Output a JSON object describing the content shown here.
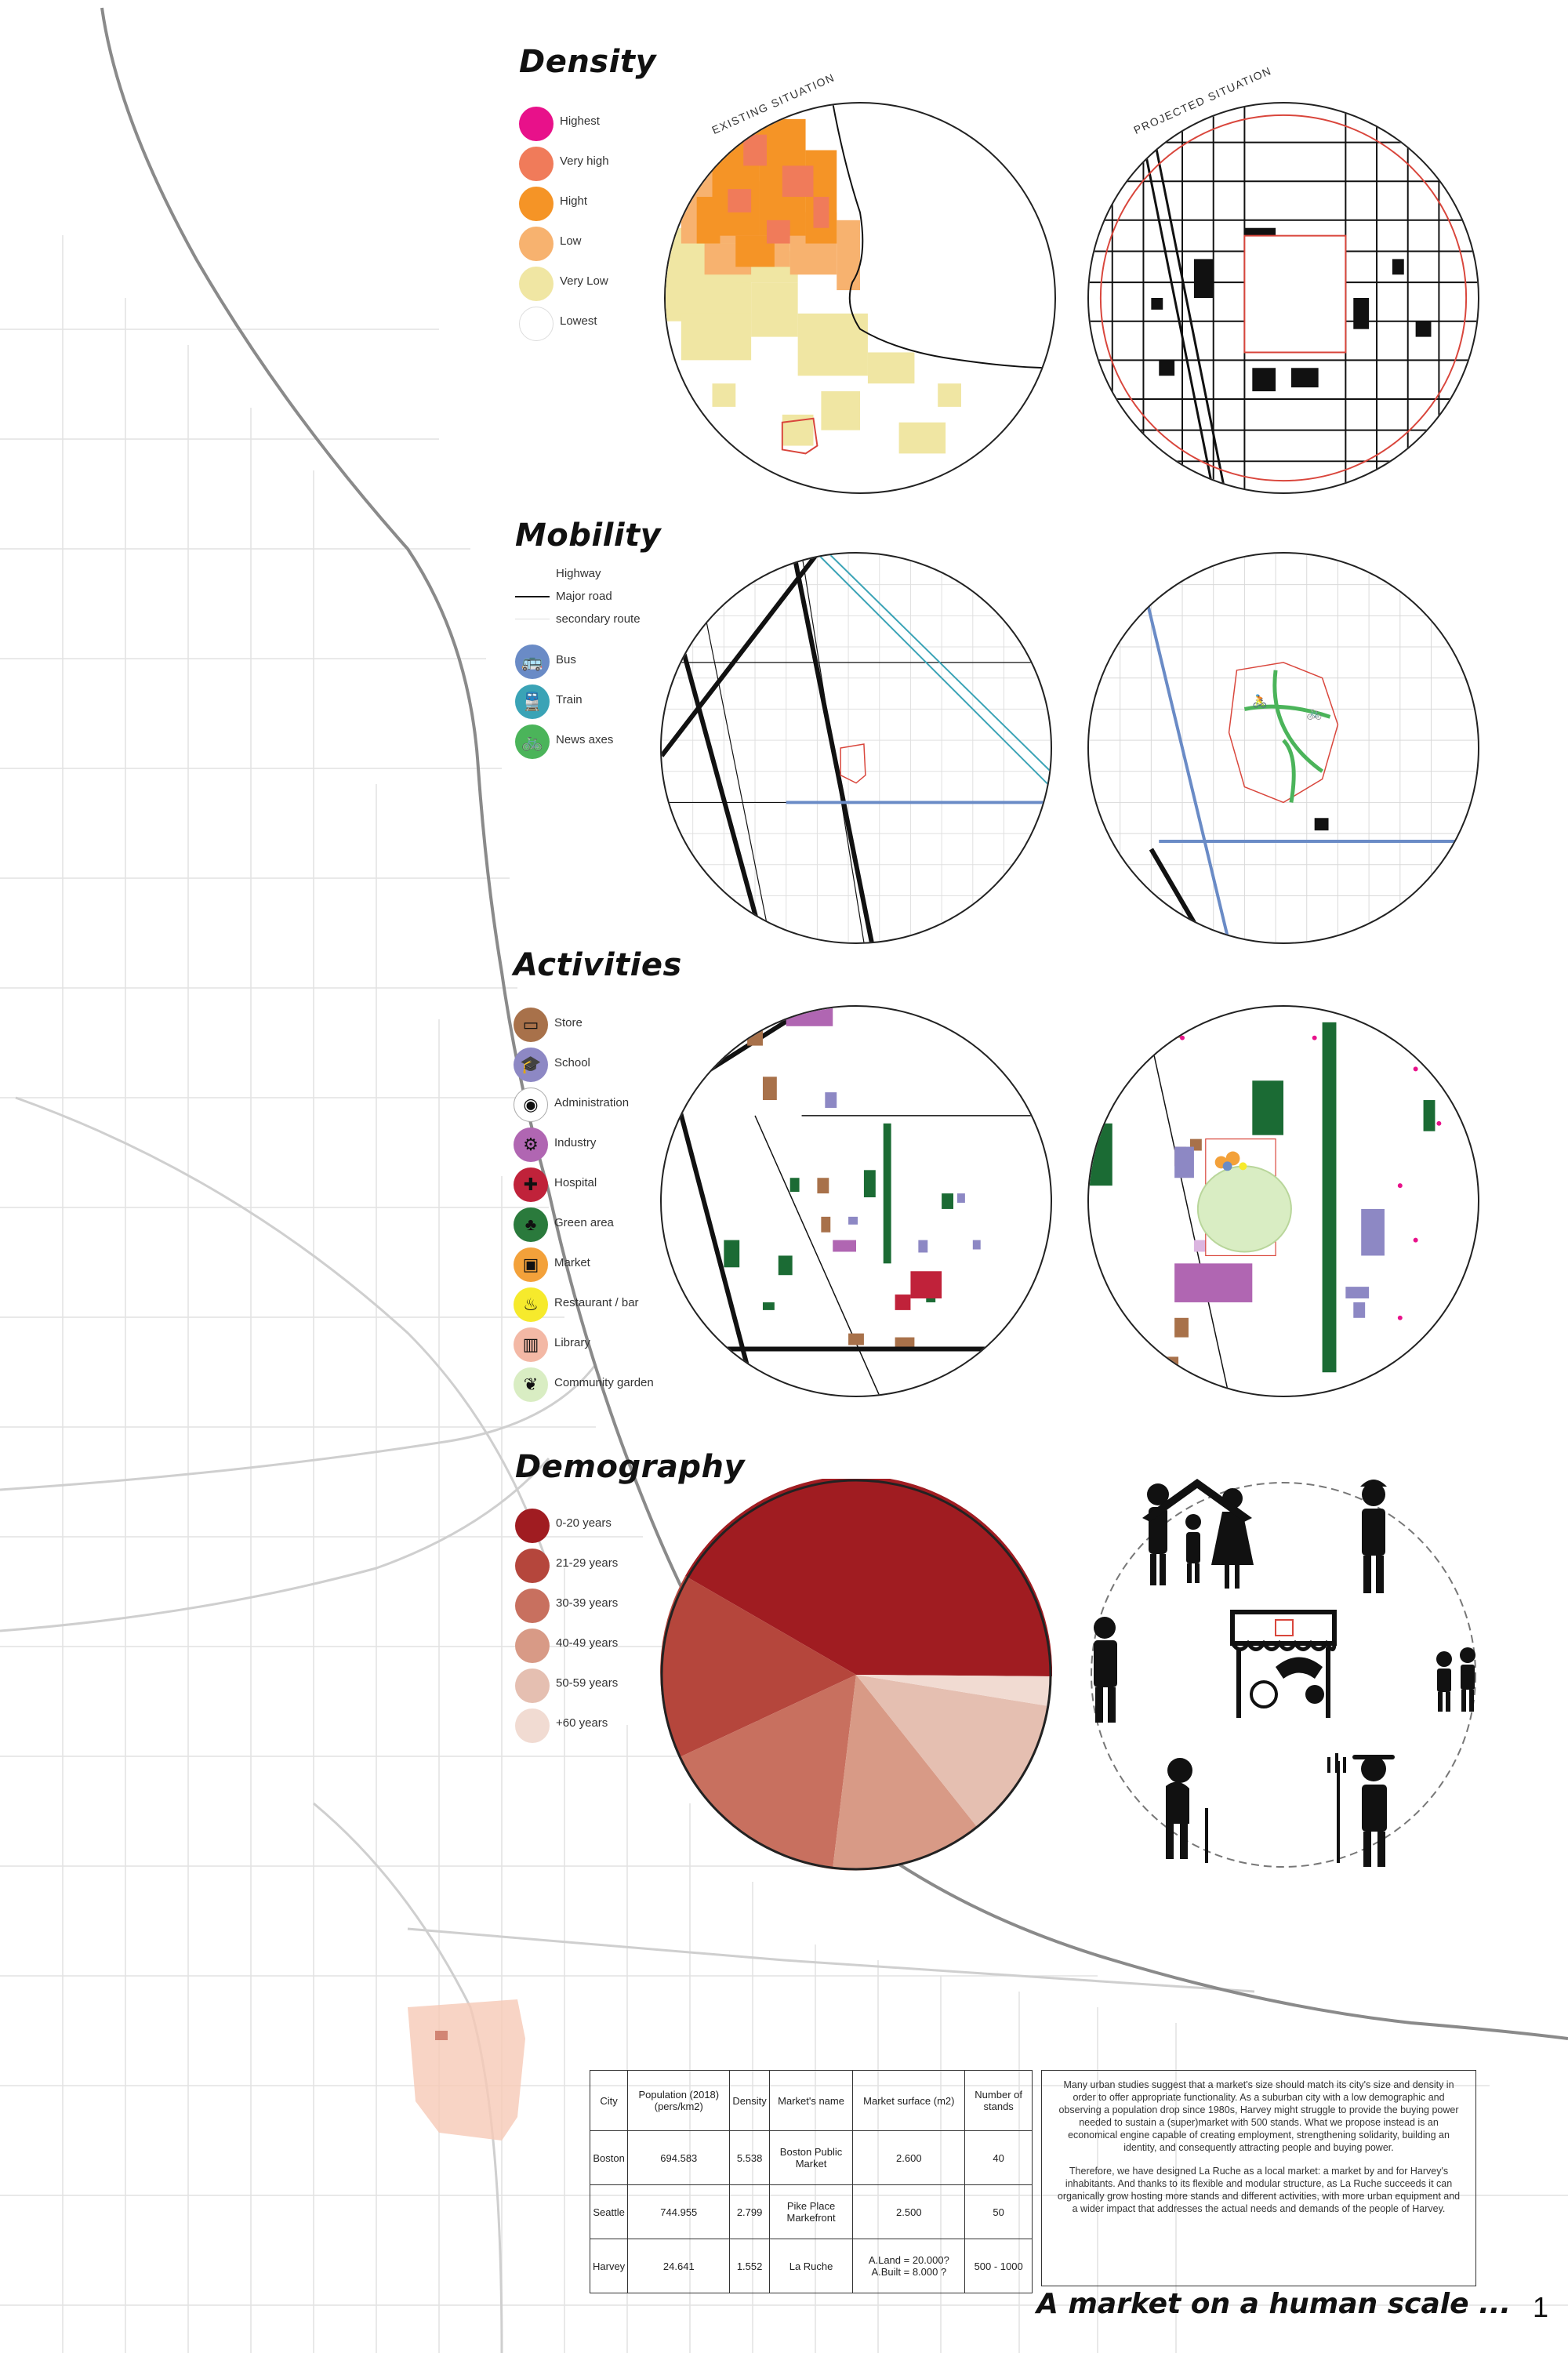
{
  "sections": {
    "density": {
      "title": "Density",
      "legend": [
        {
          "label": "Highest",
          "color": "#e8118a"
        },
        {
          "label": "Very high",
          "color": "#f07b5a"
        },
        {
          "label": "Hight",
          "color": "#f59426"
        },
        {
          "label": "Low",
          "color": "#f7b26f"
        },
        {
          "label": "Very Low",
          "color": "#f0e6a3"
        },
        {
          "label": "Lowest",
          "color": "#ffffff"
        }
      ],
      "existing_label": "EXISTING SITUATION",
      "projected_label": "PROJECTED SITUATION"
    },
    "mobility": {
      "title": "Mobility",
      "roads": [
        {
          "label": "Highway"
        },
        {
          "label": "Major road"
        },
        {
          "label": "secondary route"
        }
      ],
      "transport": [
        {
          "label": "Bus",
          "color": "#6a8bc6",
          "icon": "bus-icon",
          "glyph": "🚌"
        },
        {
          "label": "Train",
          "color": "#3aa3b6",
          "icon": "train-icon",
          "glyph": "🚆"
        },
        {
          "label": "News axes",
          "color": "#4bb45a",
          "icon": "bike-icon",
          "glyph": "🚲"
        }
      ]
    },
    "activities": {
      "title": "Activities",
      "legend": [
        {
          "label": "Store",
          "color": "#a8714a",
          "icon": "store-icon",
          "glyph": "▭"
        },
        {
          "label": "School",
          "color": "#8d88c4",
          "icon": "school-icon",
          "glyph": "🎓"
        },
        {
          "label": "Administration",
          "color": "#ffffff",
          "icon": "administration-icon",
          "glyph": "◉"
        },
        {
          "label": "Industry",
          "color": "#b066b2",
          "icon": "industry-icon",
          "glyph": "⚙"
        },
        {
          "label": "Hospital",
          "color": "#c0223a",
          "icon": "hospital-icon",
          "glyph": "✚"
        },
        {
          "label": "Green area",
          "color": "#2a7a3c",
          "icon": "tree-icon",
          "glyph": "♣"
        },
        {
          "label": "Market",
          "color": "#f3a13a",
          "icon": "market-icon",
          "glyph": "▣"
        },
        {
          "label": "Restaurant / bar",
          "color": "#f6ea2c",
          "icon": "restaurant-icon",
          "glyph": "♨"
        },
        {
          "label": "Library",
          "color": "#f3b8a5",
          "icon": "library-icon",
          "glyph": "▥"
        },
        {
          "label": "Community garden",
          "color": "#d9edc3",
          "icon": "garden-icon",
          "glyph": "❦"
        }
      ]
    },
    "demography": {
      "title": "Demography",
      "legend": [
        {
          "label": "0-20 years",
          "color": "#a01c21"
        },
        {
          "label": "21-29 years",
          "color": "#b5463c"
        },
        {
          "label": "30-39 years",
          "color": "#c8705f"
        },
        {
          "label": "40-49 years",
          "color": "#d89a86"
        },
        {
          "label": "50-59 years",
          "color": "#e5bfb1"
        },
        {
          "label": "+60  years",
          "color": "#f1dbd2"
        }
      ]
    }
  },
  "table": {
    "headers": [
      "City",
      "Population (2018) (pers/km2)",
      "Density",
      "Market's name",
      "Market surface (m2)",
      "Number of stands"
    ],
    "rows": [
      [
        "Boston",
        "694.583",
        "5.538",
        "Boston Public Market",
        "2.600",
        "40"
      ],
      [
        "Seattle",
        "744.955",
        "2.799",
        "Pike Place Markefront",
        "2.500",
        "50"
      ],
      [
        "Harvey",
        "24.641",
        "1.552",
        "La Ruche",
        "A.Land = 20.000? A.Built = 8.000 ?",
        "500 - 1000"
      ]
    ]
  },
  "text": {
    "p1": "Many urban studies suggest that a market's size should match its city's size and density in order to offer appropriate functionality. As a suburban city with a low demographic and observing a population drop since 1980s, Harvey might struggle to provide the buying power needed to sustain a (super)market with 500 stands. What we propose instead is an economical engine capable of creating employment, strengthening solidarity, building an identity, and consequently attracting people and buying power.",
    "p2": "Therefore, we have designed La Ruche as a local market: a market by and for Harvey's inhabitants. And thanks to its flexible and modular structure, as La Ruche succeeds it can organically grow hosting more stands and different activities, with more urban equipment and a wider impact that addresses the actual needs and demands of the people of Harvey."
  },
  "footer": {
    "title": "A market on a human scale ...",
    "page": "1"
  },
  "colors": {
    "map_gray": "#d4d4d4",
    "shore": "#8a8a8a",
    "site_red": "#d9463c"
  }
}
